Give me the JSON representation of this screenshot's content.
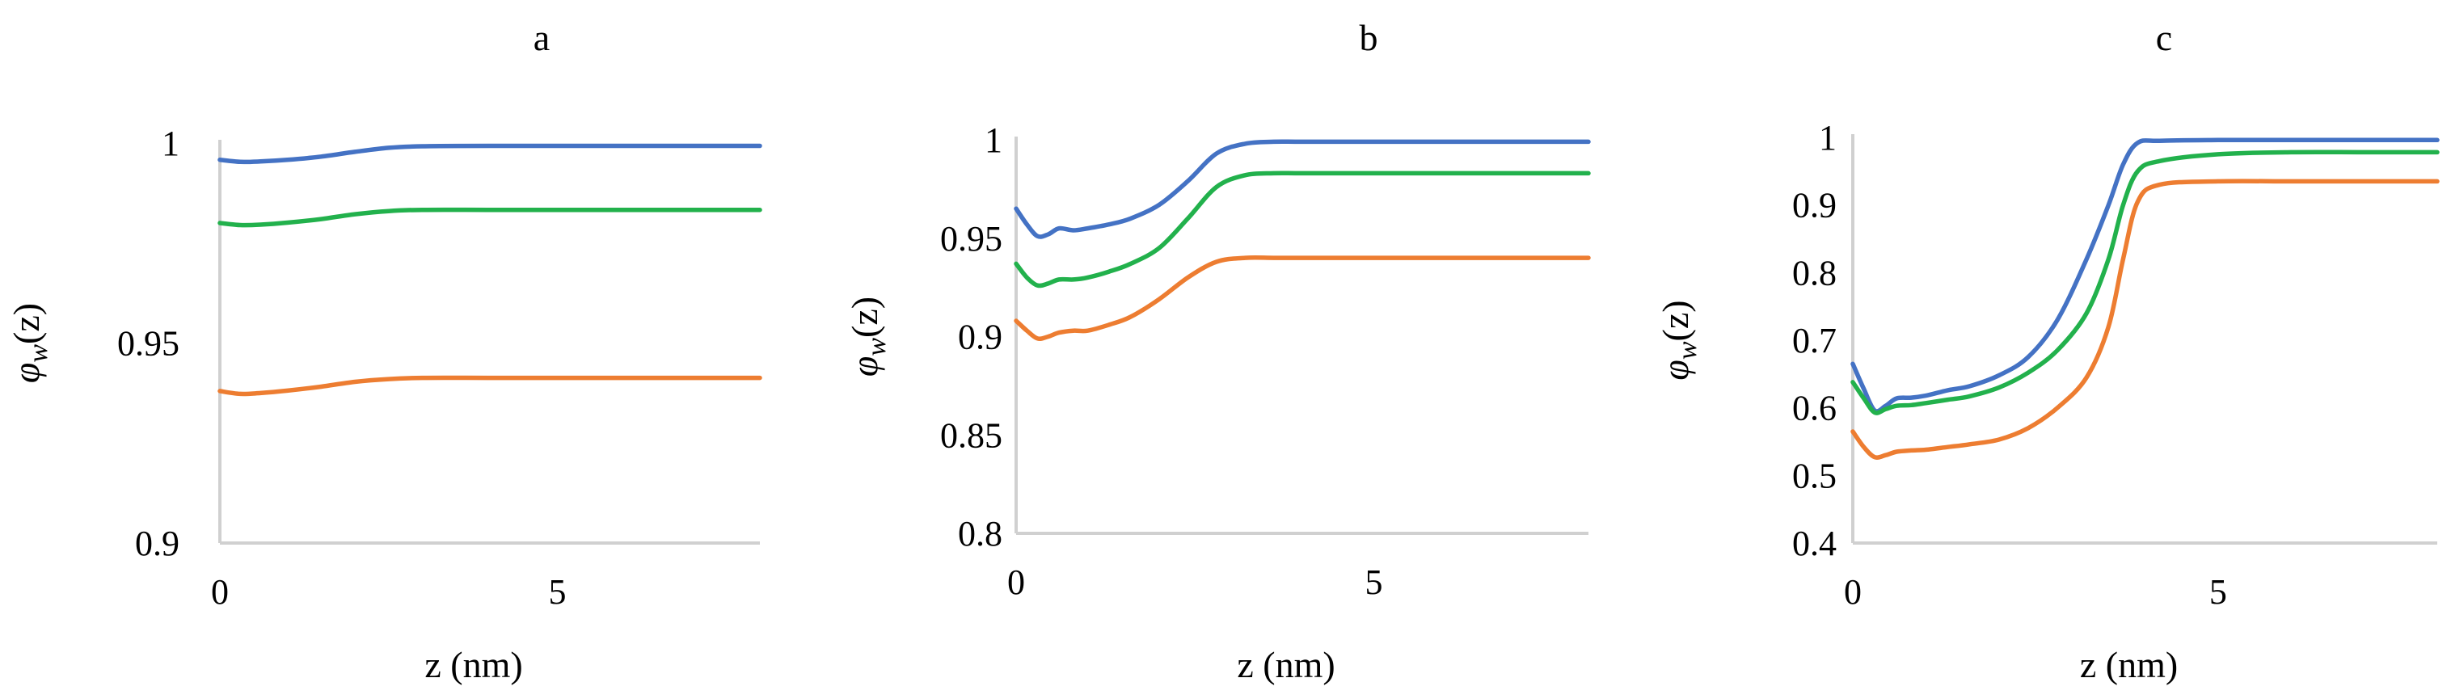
{
  "chart_data": [
    {
      "type": "line",
      "title": "a",
      "xlabel": "z (nm)",
      "ylabel": {
        "symbol": "φ",
        "subscript": "w",
        "suffix": "(z)"
      },
      "xlim": [
        0,
        8
      ],
      "ylim": [
        0.9,
        1.0
      ],
      "xticks": [
        {
          "value": 0,
          "label": "0"
        },
        {
          "value": 5,
          "label": "5"
        }
      ],
      "yticks": [
        {
          "value": 1.0,
          "label": "1"
        },
        {
          "value": 0.95,
          "label": "0.95"
        },
        {
          "value": 0.9,
          "label": "0.9"
        }
      ],
      "grid": false,
      "series": [
        {
          "color": "#4472c4",
          "x": [
            0,
            0.3,
            0.6,
            1.0,
            1.5,
            2.0,
            2.5,
            3.0,
            4.0,
            5.0,
            6.0,
            7.0,
            8.0
          ],
          "y": [
            0.9958,
            0.9953,
            0.9954,
            0.9958,
            0.9966,
            0.9978,
            0.9988,
            0.9992,
            0.9993,
            0.9993,
            0.9993,
            0.9993,
            0.9993
          ]
        },
        {
          "color": "#22b14c",
          "x": [
            0,
            0.3,
            0.6,
            1.0,
            1.5,
            2.0,
            2.5,
            3.0,
            4.0,
            5.0,
            6.0,
            7.0,
            8.0
          ],
          "y": [
            0.98,
            0.9795,
            0.9796,
            0.9801,
            0.981,
            0.9822,
            0.983,
            0.9833,
            0.9833,
            0.9833,
            0.9833,
            0.9833,
            0.9833
          ]
        },
        {
          "color": "#ed7d31",
          "x": [
            0,
            0.3,
            0.6,
            1.0,
            1.5,
            2.0,
            2.5,
            3.0,
            4.0,
            5.0,
            6.0,
            7.0,
            8.0
          ],
          "y": [
            0.938,
            0.9373,
            0.9375,
            0.9381,
            0.9391,
            0.9403,
            0.941,
            0.9413,
            0.9413,
            0.9413,
            0.9413,
            0.9413,
            0.9413
          ]
        }
      ]
    },
    {
      "type": "line",
      "title": "b",
      "xlabel": "z (nm)",
      "ylabel": {
        "symbol": "φ",
        "subscript": "w",
        "suffix": "(z)"
      },
      "xlim": [
        0,
        8
      ],
      "ylim": [
        0.8,
        1.0
      ],
      "xticks": [
        {
          "value": 0,
          "label": "0"
        },
        {
          "value": 5,
          "label": "5"
        }
      ],
      "yticks": [
        {
          "value": 1.0,
          "label": "1"
        },
        {
          "value": 0.95,
          "label": "0.95"
        },
        {
          "value": 0.9,
          "label": "0.9"
        },
        {
          "value": 0.85,
          "label": "0.85"
        },
        {
          "value": 0.8,
          "label": "0.8"
        }
      ],
      "grid": false,
      "series": [
        {
          "color": "#4472c4",
          "x": [
            0,
            0.15,
            0.3,
            0.45,
            0.6,
            0.8,
            1.0,
            1.3,
            1.6,
            2.0,
            2.4,
            2.8,
            3.2,
            3.6,
            4.0,
            5.0,
            6.0,
            7.0,
            8.0
          ],
          "y": [
            0.965,
            0.957,
            0.951,
            0.952,
            0.955,
            0.954,
            0.955,
            0.957,
            0.96,
            0.967,
            0.979,
            0.993,
            0.998,
            0.999,
            0.999,
            0.999,
            0.999,
            0.999,
            0.999
          ]
        },
        {
          "color": "#22b14c",
          "x": [
            0,
            0.15,
            0.3,
            0.45,
            0.6,
            0.8,
            1.0,
            1.3,
            1.6,
            2.0,
            2.4,
            2.8,
            3.2,
            3.6,
            4.0,
            5.0,
            6.0,
            7.0,
            8.0
          ],
          "y": [
            0.937,
            0.93,
            0.926,
            0.927,
            0.929,
            0.929,
            0.93,
            0.933,
            0.937,
            0.945,
            0.96,
            0.976,
            0.982,
            0.983,
            0.983,
            0.983,
            0.983,
            0.983,
            0.983
          ]
        },
        {
          "color": "#ed7d31",
          "x": [
            0,
            0.15,
            0.3,
            0.45,
            0.6,
            0.8,
            1.0,
            1.3,
            1.6,
            2.0,
            2.4,
            2.8,
            3.2,
            3.6,
            4.0,
            5.0,
            6.0,
            7.0,
            8.0
          ],
          "y": [
            0.908,
            0.903,
            0.899,
            0.9,
            0.902,
            0.903,
            0.903,
            0.906,
            0.91,
            0.919,
            0.93,
            0.938,
            0.94,
            0.94,
            0.94,
            0.94,
            0.94,
            0.94,
            0.94
          ]
        }
      ]
    },
    {
      "type": "line",
      "title": "c",
      "xlabel": "z (nm)",
      "ylabel": {
        "symbol": "φ",
        "subscript": "w",
        "suffix": "(z)"
      },
      "xlim": [
        0,
        8
      ],
      "ylim": [
        0.4,
        1.0
      ],
      "xticks": [
        {
          "value": 0,
          "label": "0"
        },
        {
          "value": 5,
          "label": "5"
        }
      ],
      "yticks": [
        {
          "value": 1.0,
          "label": "1"
        },
        {
          "value": 0.9,
          "label": "0.9"
        },
        {
          "value": 0.8,
          "label": "0.8"
        },
        {
          "value": 0.7,
          "label": "0.7"
        },
        {
          "value": 0.6,
          "label": "0.6"
        },
        {
          "value": 0.5,
          "label": "0.5"
        },
        {
          "value": 0.4,
          "label": "0.4"
        }
      ],
      "grid": false,
      "series": [
        {
          "color": "#4472c4",
          "x": [
            0,
            0.15,
            0.3,
            0.45,
            0.6,
            0.8,
            1.0,
            1.3,
            1.6,
            2.0,
            2.4,
            2.8,
            3.2,
            3.5,
            3.7,
            3.9,
            4.2,
            5.0,
            6.0,
            7.0,
            8.0
          ],
          "y": [
            0.665,
            0.628,
            0.596,
            0.603,
            0.614,
            0.615,
            0.618,
            0.626,
            0.632,
            0.648,
            0.675,
            0.73,
            0.82,
            0.9,
            0.96,
            0.992,
            0.995,
            0.996,
            0.996,
            0.996,
            0.996
          ]
        },
        {
          "color": "#22b14c",
          "x": [
            0,
            0.15,
            0.3,
            0.45,
            0.6,
            0.8,
            1.0,
            1.3,
            1.6,
            2.0,
            2.4,
            2.8,
            3.2,
            3.5,
            3.7,
            3.9,
            4.2,
            5.0,
            6.0,
            7.0,
            8.0
          ],
          "y": [
            0.638,
            0.614,
            0.593,
            0.598,
            0.603,
            0.604,
            0.607,
            0.612,
            0.617,
            0.63,
            0.652,
            0.685,
            0.74,
            0.82,
            0.9,
            0.95,
            0.965,
            0.975,
            0.978,
            0.978,
            0.978
          ]
        },
        {
          "color": "#ed7d31",
          "x": [
            0,
            0.15,
            0.3,
            0.45,
            0.6,
            0.8,
            1.0,
            1.3,
            1.6,
            2.0,
            2.4,
            2.8,
            3.2,
            3.5,
            3.7,
            3.9,
            4.2,
            5.0,
            6.0,
            7.0,
            8.0
          ],
          "y": [
            0.565,
            0.542,
            0.527,
            0.53,
            0.535,
            0.537,
            0.538,
            0.542,
            0.546,
            0.553,
            0.57,
            0.6,
            0.645,
            0.72,
            0.82,
            0.905,
            0.93,
            0.935,
            0.935,
            0.935,
            0.935
          ]
        }
      ]
    }
  ]
}
